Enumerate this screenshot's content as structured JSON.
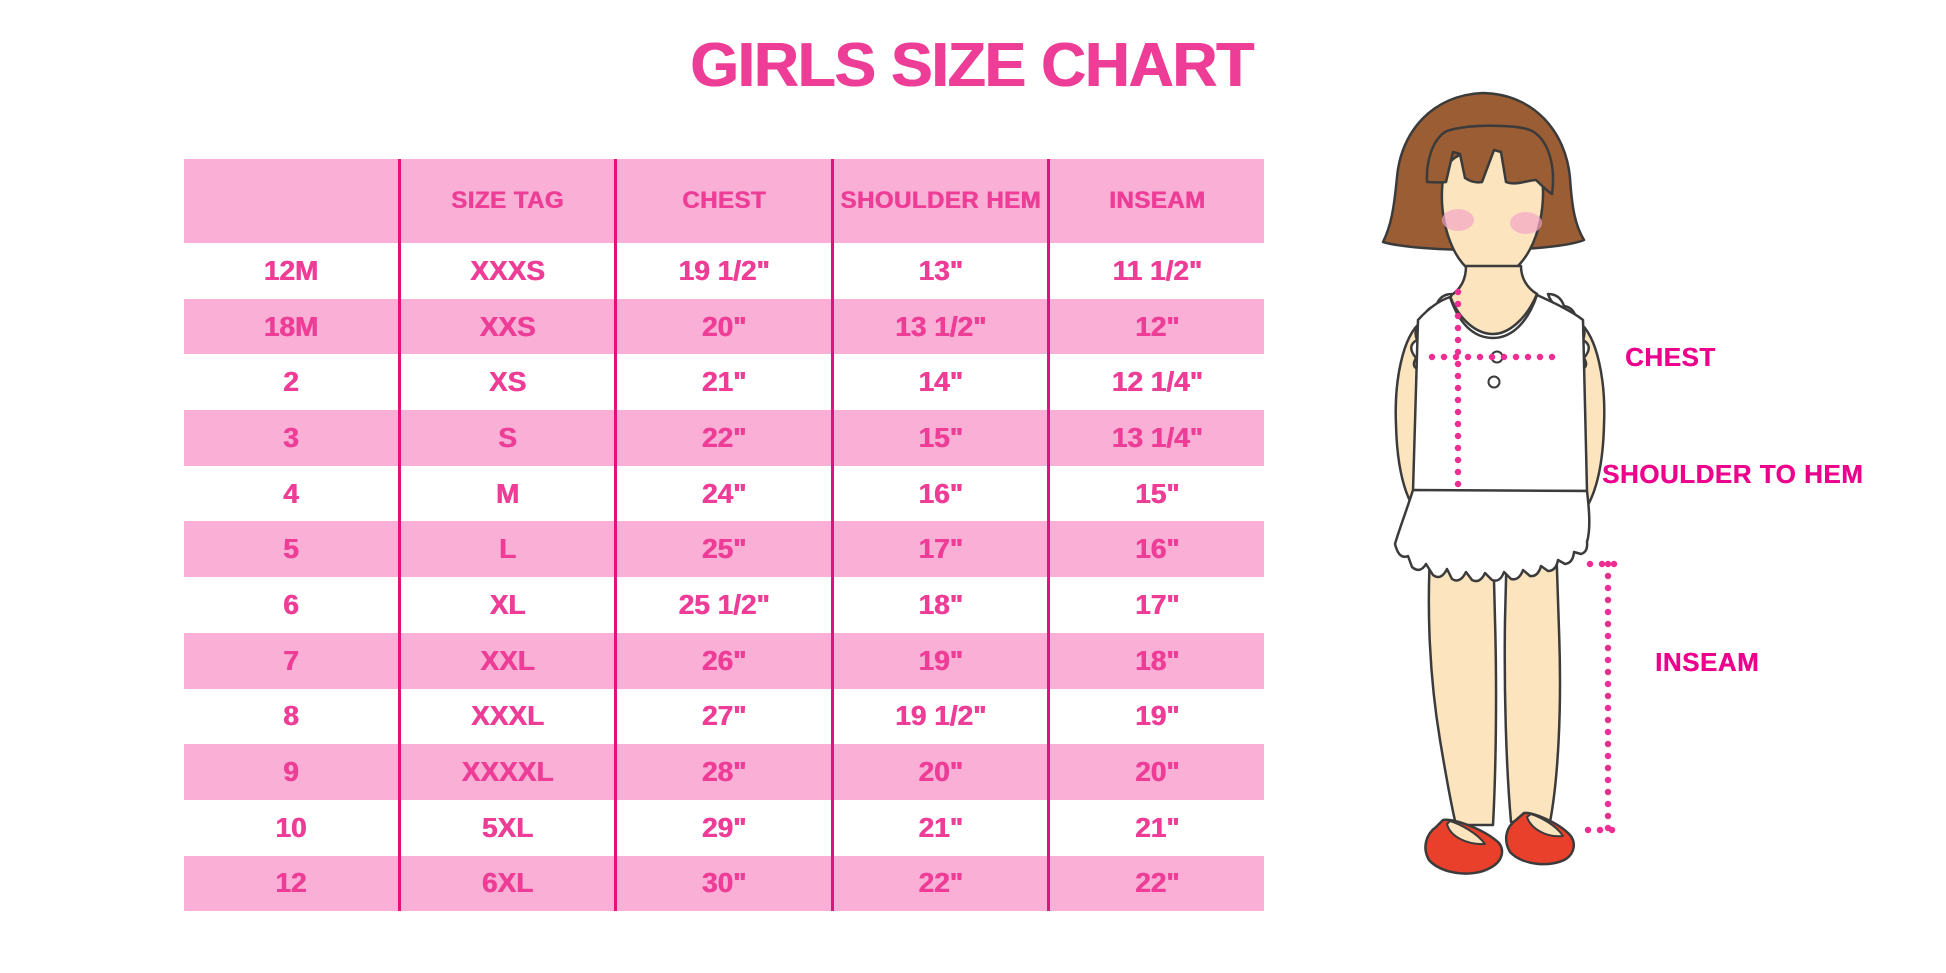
{
  "chart_data": {
    "type": "table",
    "title": "GIRLS SIZE CHART",
    "columns": [
      "",
      "SIZE TAG",
      "CHEST",
      "SHOULDER HEM",
      "INSEAM"
    ],
    "rows": [
      [
        "12M",
        "XXXS",
        "19 1/2\"",
        "13\"",
        "11 1/2\""
      ],
      [
        "18M",
        "XXS",
        "20\"",
        "13 1/2\"",
        "12\""
      ],
      [
        "2",
        "XS",
        "21\"",
        "14\"",
        "12 1/4\""
      ],
      [
        "3",
        "S",
        "22\"",
        "15\"",
        "13 1/4\""
      ],
      [
        "4",
        "M",
        "24\"",
        "16\"",
        "15\""
      ],
      [
        "5",
        "L",
        "25\"",
        "17\"",
        "16\""
      ],
      [
        "6",
        "XL",
        "25 1/2\"",
        "18\"",
        "17\""
      ],
      [
        "7",
        "XXL",
        "26\"",
        "19\"",
        "18\""
      ],
      [
        "8",
        "XXXL",
        "27\"",
        "19 1/2\"",
        "19\""
      ],
      [
        "9",
        "XXXXL",
        "28\"",
        "20\"",
        "20\""
      ],
      [
        "10",
        "5XL",
        "29\"",
        "21\"",
        "21\""
      ],
      [
        "12",
        "6XL",
        "30\"",
        "22\"",
        "22\""
      ]
    ],
    "row_striping": "header pink, then alternating white/pink",
    "legend_position": "none",
    "grid": "vertical magenta dividers only"
  },
  "diagram": {
    "labels": {
      "chest": "CHEST",
      "shoulder_to_hem": "SHOULDER TO HEM",
      "inseam": "INSEAM"
    }
  },
  "colors": {
    "accent_text": "#EE3D96",
    "row_pink": "#F9AFD6",
    "divider_magenta": "#E2117C",
    "label_magenta": "#EC008C",
    "dotted_line": "#ED2D92",
    "hair_brown": "#9B5D33",
    "skin": "#FBE4BE",
    "blush": "#F4A6C6",
    "shoe_red": "#E8402A"
  }
}
